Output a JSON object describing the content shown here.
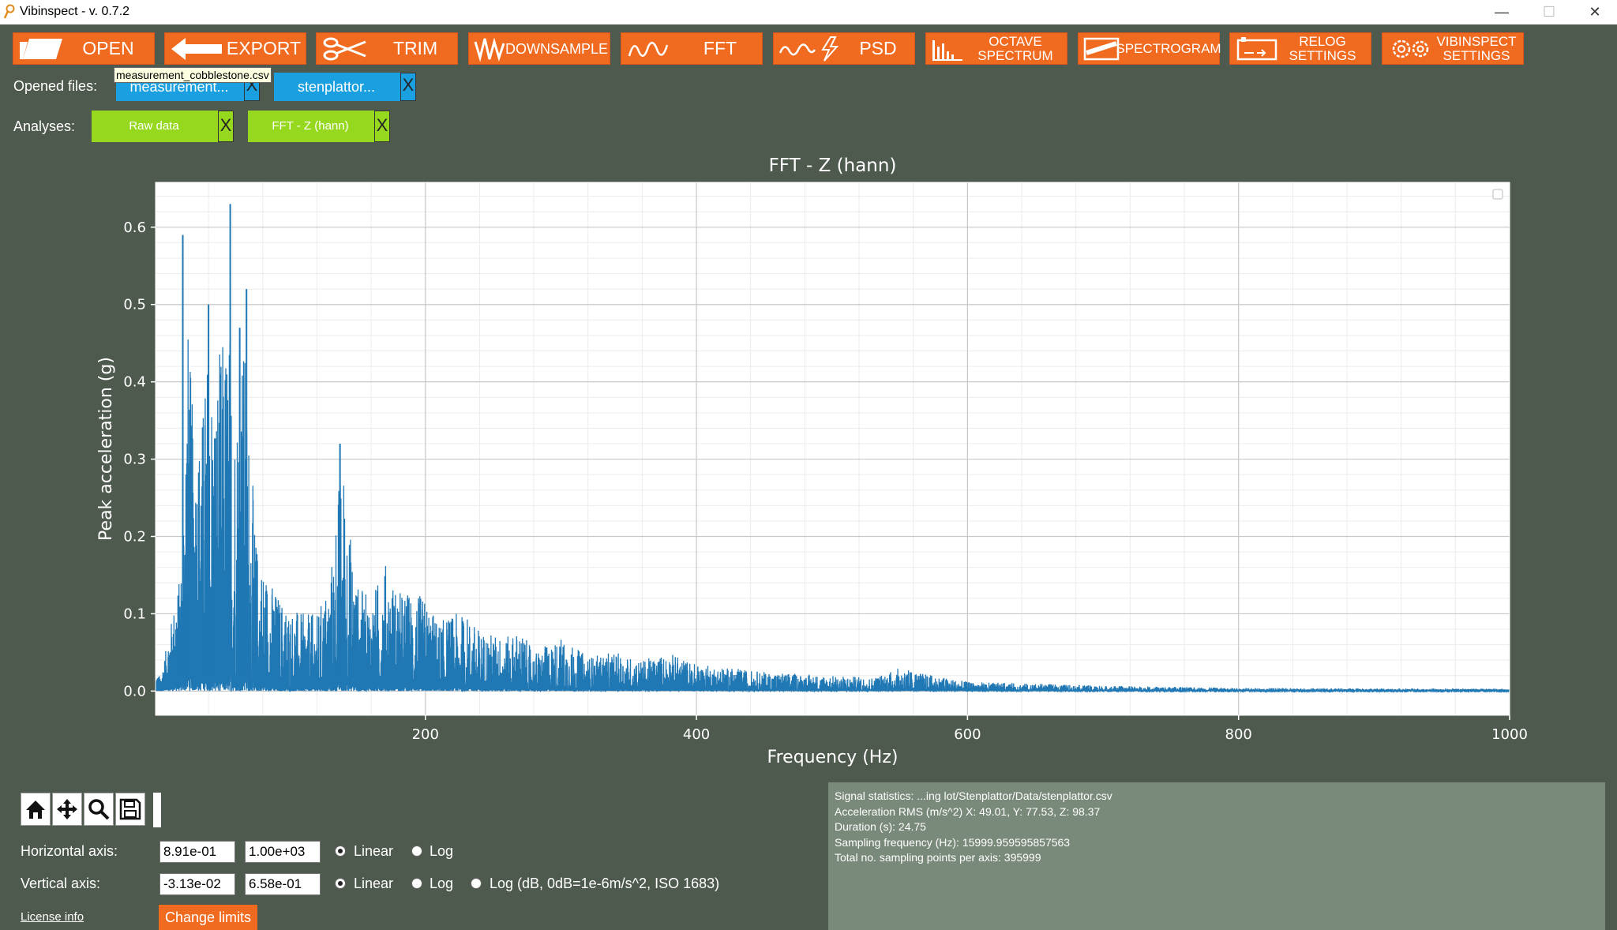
{
  "window": {
    "title": "Vibinspect - v. 0.7.2",
    "controls": {
      "minimize": "—",
      "maximize": "☐",
      "close": "✕"
    }
  },
  "toolbar": [
    {
      "label": "OPEN",
      "icon": "folder-icon"
    },
    {
      "label": "EXPORT",
      "icon": "arrow-left-icon"
    },
    {
      "label": "TRIM",
      "icon": "scissors-icon"
    },
    {
      "label": "DOWNSAMPLE",
      "icon": "downsample-icon"
    },
    {
      "label": "FFT",
      "icon": "wave-icon"
    },
    {
      "label": "PSD",
      "icon": "wave-lightning-icon"
    },
    {
      "label": "OCTAVE\nSPECTRUM",
      "icon": "bars-icon"
    },
    {
      "label": "SPECTROGRAM",
      "icon": "spectrogram-icon"
    },
    {
      "label": "RELOG\nSETTINGS",
      "icon": "relog-icon"
    },
    {
      "label": "VIBINSPECT\nSETTINGS",
      "icon": "gears-icon"
    }
  ],
  "opened_files": {
    "label": "Opened files:",
    "tooltip": "measurement_cobblestone.csv",
    "files": [
      "measurement...",
      "stenplattor..."
    ],
    "close": "X"
  },
  "analyses": {
    "label": "Analyses:",
    "items": [
      "Raw data",
      "FFT - Z (hann)"
    ],
    "close": "X"
  },
  "chart_data": {
    "type": "line",
    "title": "FFT - Z (hann)",
    "xlabel": "Frequency (Hz)",
    "ylabel": "Peak acceleration (g)",
    "xlim": [
      0.891,
      1000
    ],
    "ylim": [
      -0.0313,
      0.658
    ],
    "xticks": [
      200,
      400,
      600,
      800,
      1000
    ],
    "yticks": [
      0.0,
      0.1,
      0.2,
      0.3,
      0.4,
      0.5,
      0.6
    ],
    "ytick_labels": [
      "0.0",
      "0.1",
      "0.2",
      "0.3",
      "0.4",
      "0.5",
      "0.6"
    ],
    "grid": true,
    "minor_grid": true,
    "color": "#1f77b4",
    "envelope": [
      [
        5,
        0.02
      ],
      [
        20,
        0.16
      ],
      [
        25,
        0.48
      ],
      [
        30,
        0.3
      ],
      [
        35,
        0.35
      ],
      [
        40,
        0.45
      ],
      [
        45,
        0.42
      ],
      [
        50,
        0.46
      ],
      [
        55,
        0.5
      ],
      [
        60,
        0.38
      ],
      [
        65,
        0.5
      ],
      [
        70,
        0.35
      ],
      [
        75,
        0.2
      ],
      [
        80,
        0.17
      ],
      [
        90,
        0.13
      ],
      [
        100,
        0.11
      ],
      [
        110,
        0.1
      ],
      [
        120,
        0.1
      ],
      [
        130,
        0.15
      ],
      [
        135,
        0.27
      ],
      [
        140,
        0.3
      ],
      [
        145,
        0.2
      ],
      [
        150,
        0.14
      ],
      [
        160,
        0.12
      ],
      [
        170,
        0.17
      ],
      [
        175,
        0.15
      ],
      [
        180,
        0.13
      ],
      [
        190,
        0.13
      ],
      [
        200,
        0.12
      ],
      [
        210,
        0.09
      ],
      [
        220,
        0.1
      ],
      [
        230,
        0.1
      ],
      [
        240,
        0.08
      ],
      [
        260,
        0.07
      ],
      [
        270,
        0.08
      ],
      [
        280,
        0.05
      ],
      [
        290,
        0.06
      ],
      [
        300,
        0.07
      ],
      [
        320,
        0.045
      ],
      [
        340,
        0.05
      ],
      [
        360,
        0.04
      ],
      [
        380,
        0.05
      ],
      [
        400,
        0.035
      ],
      [
        450,
        0.025
      ],
      [
        500,
        0.02
      ],
      [
        530,
        0.018
      ],
      [
        550,
        0.03
      ],
      [
        570,
        0.022
      ],
      [
        600,
        0.012
      ],
      [
        700,
        0.007
      ],
      [
        800,
        0.004
      ],
      [
        1000,
        0.003
      ]
    ],
    "peaks": [
      [
        21,
        0.59
      ],
      [
        56,
        0.63
      ],
      [
        40,
        0.5
      ],
      [
        68,
        0.52
      ],
      [
        137,
        0.32
      ],
      [
        63,
        0.47
      ]
    ]
  },
  "toolbox": {
    "tools": [
      "home-icon",
      "move-icon",
      "zoom-icon",
      "save-icon"
    ]
  },
  "axes_controls": {
    "horizontal": {
      "label": "Horizontal axis:",
      "min": "8.91e-01",
      "max": "1.00e+03",
      "scale": "Linear"
    },
    "vertical": {
      "label": "Vertical axis:",
      "min": "-3.13e-02",
      "max": "6.58e-01",
      "scale": "Linear"
    },
    "options": {
      "linear": "Linear",
      "log": "Log",
      "log_db": "Log (dB, 0dB=1e-6m/s^2, ISO 1683)"
    }
  },
  "license_link": "License info",
  "change_limits_label": "Change limits",
  "stats": [
    "Signal statistics: ...ing lot/Stenplattor/Data/stenplattor.csv",
    "Acceleration RMS (m/s^2) X: 49.01, Y: 77.53, Z: 98.37",
    "Duration (s): 24.75",
    "Sampling frequency (Hz): 15999.959595857563",
    "Total no. sampling points per axis: 395999"
  ]
}
